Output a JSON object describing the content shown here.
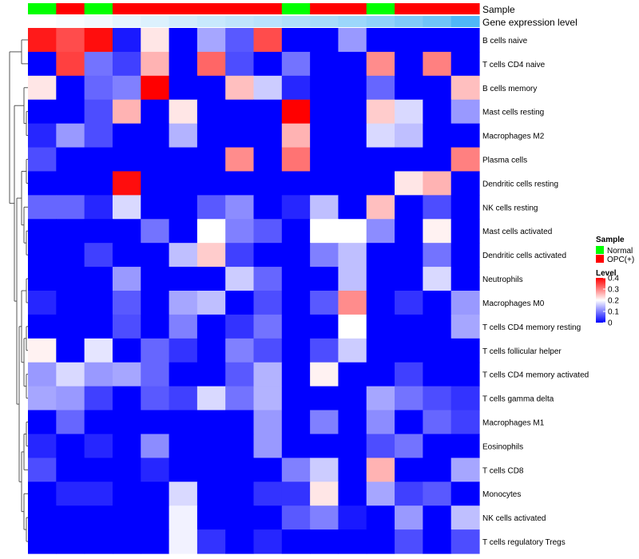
{
  "chart_data": {
    "type": "heatmap",
    "title": "",
    "annotation_tracks": [
      {
        "name": "Sample",
        "key": "sample"
      },
      {
        "name": "Gene expression level",
        "key": "expr"
      }
    ],
    "columns": [
      {
        "sample": "Normal",
        "expr": 0.0
      },
      {
        "sample": "OPC(+)",
        "expr": 0.04
      },
      {
        "sample": "Normal",
        "expr": 0.08
      },
      {
        "sample": "OPC(+)",
        "expr": 0.14
      },
      {
        "sample": "OPC(+)",
        "expr": 0.2
      },
      {
        "sample": "OPC(+)",
        "expr": 0.26
      },
      {
        "sample": "OPC(+)",
        "expr": 0.31
      },
      {
        "sample": "OPC(+)",
        "expr": 0.36
      },
      {
        "sample": "OPC(+)",
        "expr": 0.4
      },
      {
        "sample": "Normal",
        "expr": 0.45
      },
      {
        "sample": "OPC(+)",
        "expr": 0.5
      },
      {
        "sample": "OPC(+)",
        "expr": 0.56
      },
      {
        "sample": "Normal",
        "expr": 0.63
      },
      {
        "sample": "OPC(+)",
        "expr": 0.72
      },
      {
        "sample": "OPC(+)",
        "expr": 0.82
      },
      {
        "sample": "OPC(+)",
        "expr": 1.0
      }
    ],
    "rows": [
      "B cells naive",
      "T cells CD4 naive",
      "B cells memory",
      "Mast cells resting",
      "Macrophages M2",
      "Plasma cells",
      "Dendritic cells resting",
      "NK cells resting",
      "Mast cells activated",
      "Dendritic cells activated",
      "Neutrophils",
      "Macrophages M0",
      "T cells CD4 memory resting",
      "T cells follicular helper",
      "T cells CD4 memory activated",
      "T cells gamma delta",
      "Macrophages M1",
      "Eosinophils",
      "T cells CD8",
      "Monocytes",
      "NK cells activated",
      "T cells regulatory  Tregs"
    ],
    "values": [
      [
        0.38,
        0.34,
        0.39,
        0.02,
        0.22,
        0.0,
        0.13,
        0.07,
        0.34,
        0.0,
        0.0,
        0.12,
        0.0,
        0.0,
        0.0,
        0.0
      ],
      [
        0.0,
        0.35,
        0.09,
        0.05,
        0.26,
        0.0,
        0.32,
        0.06,
        0.0,
        0.09,
        0.0,
        0.0,
        0.29,
        0.0,
        0.3,
        0.0
      ],
      [
        0.22,
        0.0,
        0.08,
        0.1,
        0.4,
        0.0,
        0.0,
        0.25,
        0.16,
        0.03,
        0.0,
        0.0,
        0.08,
        0.0,
        0.0,
        0.25
      ],
      [
        0.0,
        0.0,
        0.06,
        0.26,
        0.0,
        0.22,
        0.0,
        0.0,
        0.0,
        0.4,
        0.0,
        0.0,
        0.24,
        0.17,
        0.0,
        0.12
      ],
      [
        0.03,
        0.12,
        0.06,
        0.0,
        0.0,
        0.14,
        0.0,
        0.0,
        0.0,
        0.26,
        0.0,
        0.0,
        0.17,
        0.15,
        0.0,
        0.0
      ],
      [
        0.06,
        0.0,
        0.0,
        0.0,
        0.0,
        0.0,
        0.0,
        0.29,
        0.0,
        0.31,
        0.0,
        0.0,
        0.0,
        0.0,
        0.0,
        0.3
      ],
      [
        0.0,
        0.0,
        0.0,
        0.39,
        0.0,
        0.0,
        0.0,
        0.0,
        0.0,
        0.0,
        0.0,
        0.0,
        0.0,
        0.22,
        0.26,
        0.0
      ],
      [
        0.08,
        0.08,
        0.03,
        0.17,
        0.0,
        0.0,
        0.07,
        0.11,
        0.0,
        0.03,
        0.15,
        0.0,
        0.25,
        0.0,
        0.06,
        0.0
      ],
      [
        0.0,
        0.0,
        0.0,
        0.0,
        0.09,
        0.0,
        0.2,
        0.1,
        0.07,
        0.0,
        0.2,
        0.2,
        0.11,
        0.0,
        0.21,
        0.0
      ],
      [
        0.0,
        0.0,
        0.05,
        0.0,
        0.0,
        0.15,
        0.24,
        0.05,
        0.0,
        0.0,
        0.1,
        0.15,
        0.0,
        0.0,
        0.09,
        0.0
      ],
      [
        0.0,
        0.0,
        0.0,
        0.12,
        0.0,
        0.0,
        0.0,
        0.16,
        0.08,
        0.0,
        0.0,
        0.15,
        0.0,
        0.0,
        0.17,
        0.0
      ],
      [
        0.03,
        0.0,
        0.0,
        0.07,
        0.0,
        0.13,
        0.15,
        0.0,
        0.06,
        0.0,
        0.07,
        0.29,
        0.0,
        0.04,
        0.0,
        0.12
      ],
      [
        0.0,
        0.0,
        0.0,
        0.06,
        0.0,
        0.1,
        0.0,
        0.04,
        0.09,
        0.0,
        0.0,
        0.2,
        0.0,
        0.0,
        0.0,
        0.13
      ],
      [
        0.21,
        0.0,
        0.18,
        0.0,
        0.08,
        0.04,
        0.0,
        0.1,
        0.06,
        0.0,
        0.06,
        0.16,
        0.0,
        0.0,
        0.0,
        0.0
      ],
      [
        0.12,
        0.17,
        0.12,
        0.13,
        0.08,
        0.0,
        0.0,
        0.07,
        0.14,
        0.0,
        0.21,
        0.0,
        0.0,
        0.05,
        0.0,
        0.0
      ],
      [
        0.13,
        0.12,
        0.05,
        0.0,
        0.07,
        0.05,
        0.17,
        0.09,
        0.14,
        0.0,
        0.0,
        0.0,
        0.13,
        0.09,
        0.06,
        0.04
      ],
      [
        0.0,
        0.08,
        0.0,
        0.0,
        0.0,
        0.0,
        0.0,
        0.0,
        0.12,
        0.0,
        0.1,
        0.0,
        0.11,
        0.0,
        0.08,
        0.05
      ],
      [
        0.03,
        0.0,
        0.03,
        0.0,
        0.11,
        0.0,
        0.0,
        0.0,
        0.12,
        0.0,
        0.0,
        0.0,
        0.06,
        0.09,
        0.0,
        0.0
      ],
      [
        0.06,
        0.0,
        0.0,
        0.0,
        0.03,
        0.0,
        0.0,
        0.0,
        0.0,
        0.1,
        0.16,
        0.0,
        0.26,
        0.0,
        0.0,
        0.13
      ],
      [
        0.0,
        0.03,
        0.03,
        0.0,
        0.0,
        0.17,
        0.0,
        0.0,
        0.04,
        0.04,
        0.22,
        0.0,
        0.13,
        0.05,
        0.07,
        0.0
      ],
      [
        0.0,
        0.0,
        0.0,
        0.0,
        0.0,
        0.19,
        0.0,
        0.0,
        0.0,
        0.07,
        0.1,
        0.02,
        0.0,
        0.12,
        0.0,
        0.15
      ],
      [
        0.0,
        0.0,
        0.0,
        0.0,
        0.0,
        0.19,
        0.04,
        0.0,
        0.03,
        0.0,
        0.0,
        0.0,
        0.0,
        0.06,
        0.0,
        0.06
      ]
    ],
    "color_scale": {
      "min": 0,
      "max": 0.4,
      "stops": [
        {
          "value": 0,
          "color": "#0000ff"
        },
        {
          "value": 0.2,
          "color": "#ffffff"
        },
        {
          "value": 0.4,
          "color": "#ff0000"
        }
      ]
    },
    "sample_colors": {
      "Normal": "#00ff00",
      "OPC(+)": "#ff0000"
    },
    "expr_colors": {
      "low": "#ffffff",
      "high": "#4fb7f7"
    },
    "legends": {
      "sample": {
        "title": "Sample",
        "entries": [
          "Normal",
          "OPC(+)"
        ]
      },
      "level": {
        "title": "Level",
        "ticks": [
          "0.4",
          "0.3",
          "0.2",
          "0.1",
          "0"
        ],
        "tick_values": [
          0.4,
          0.3,
          0.2,
          0.1,
          0
        ]
      }
    },
    "dendrogram": {
      "side": "left"
    },
    "xlabel": "",
    "ylabel": ""
  }
}
